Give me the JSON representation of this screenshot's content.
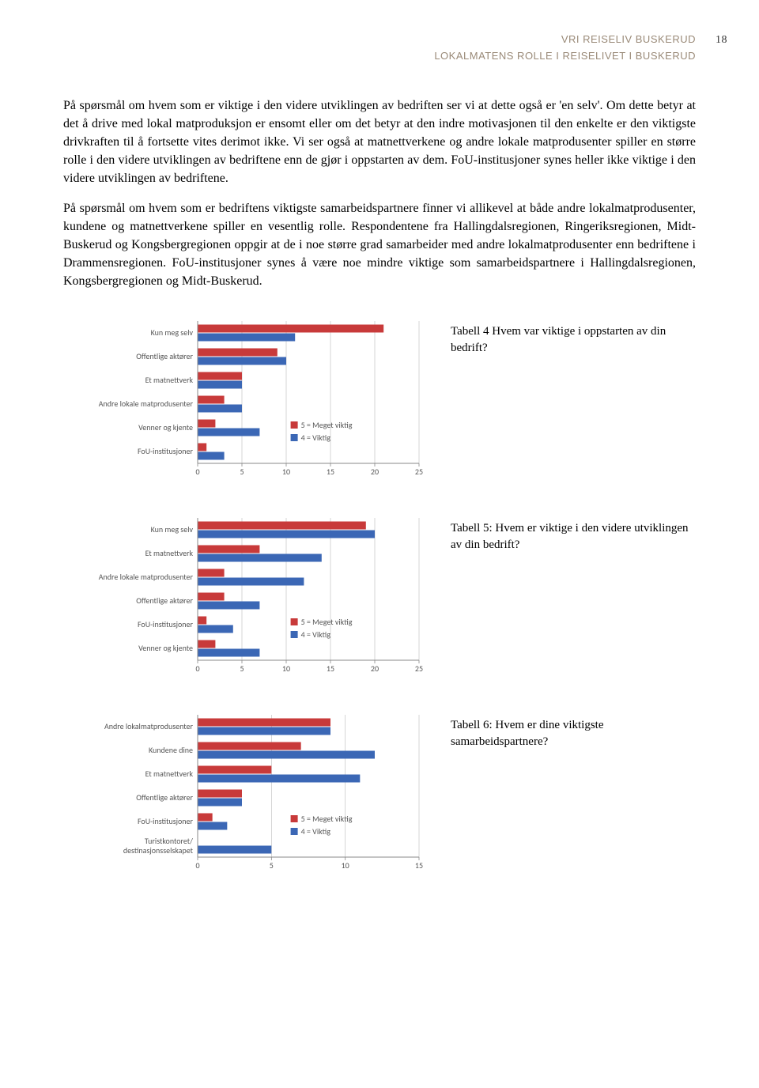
{
  "header": {
    "line1": "VRI REISELIV BUSKERUD",
    "line2": "LOKALMATENS ROLLE I REISELIVET I BUSKERUD",
    "page_number": "18"
  },
  "paragraphs": {
    "p1": "På spørsmål om hvem som er viktige i den videre utviklingen av bedriften ser vi at dette også er 'en selv'. Om dette betyr at det å drive med lokal matproduksjon er ensomt eller om det betyr at den indre motivasjonen til den enkelte er den viktigste drivkraften til å fortsette vites derimot ikke. Vi ser også at matnettverkene og andre lokale matprodusenter spiller en større rolle i den videre utviklingen av bedriftene enn de gjør i oppstarten av dem. FoU-institusjoner synes heller ikke viktige i den videre utviklingen av bedriftene.",
    "p2": "På spørsmål om hvem som er bedriftens viktigste samarbeidspartnere finner vi allikevel at både andre lokalmatprodusenter, kundene og matnettverkene spiller en vesentlig rolle. Respondentene fra Hallingdalsregionen, Ringeriksregionen, Midt-Buskerud og Kongsbergregionen oppgir at de i noe større grad samarbeider med andre lokalmatprodusenter enn bedriftene i Drammensregionen. FoU-institusjoner synes å være noe mindre viktige som samarbeidspartnere i Hallingdalsregionen, Kongsbergregionen og Midt-Buskerud."
  },
  "legend": {
    "s5": "5 = Meget viktig",
    "s4": "4 = Viktig"
  },
  "colors": {
    "red": "#c83a3a",
    "blue": "#3b67b5",
    "axis": "#888888",
    "grid": "#bbbbbb",
    "label": "#555555",
    "header": "#9a8a78"
  },
  "chart1": {
    "caption": "Tabell 4 Hvem var viktige i oppstarten av din bedrift?",
    "xmax": 25,
    "xticks": [
      0,
      5,
      10,
      15,
      20,
      25
    ],
    "label_fontsize": 10,
    "tick_fontsize": 10,
    "categories": [
      {
        "label": "Kun meg selv",
        "red": 21,
        "blue": 11
      },
      {
        "label": "Offentlige aktører",
        "red": 9,
        "blue": 10
      },
      {
        "label": "Et matnettverk",
        "red": 5,
        "blue": 5
      },
      {
        "label": "Andre lokale matprodusenter",
        "red": 3,
        "blue": 5
      },
      {
        "label": "Venner og kjente",
        "red": 2,
        "blue": 7
      },
      {
        "label": "FoU-institusjoner",
        "red": 1,
        "blue": 3
      }
    ]
  },
  "chart2": {
    "caption": "Tabell 5: Hvem er viktige i den videre utviklingen av din bedrift?",
    "xmax": 25,
    "xticks": [
      0,
      5,
      10,
      15,
      20,
      25
    ],
    "label_fontsize": 10,
    "tick_fontsize": 10,
    "categories": [
      {
        "label": "Kun meg selv",
        "red": 19,
        "blue": 20
      },
      {
        "label": "Et matnettverk",
        "red": 7,
        "blue": 14
      },
      {
        "label": "Andre lokale matprodusenter",
        "red": 3,
        "blue": 12
      },
      {
        "label": "Offentlige aktører",
        "red": 3,
        "blue": 7
      },
      {
        "label": "FoU-institusjoner",
        "red": 1,
        "blue": 4
      },
      {
        "label": "Venner og kjente",
        "red": 2,
        "blue": 7
      }
    ]
  },
  "chart3": {
    "caption": "Tabell 6: Hvem er dine viktigste samarbeidspartnere?",
    "xmax": 15,
    "xticks": [
      0,
      5,
      10,
      15
    ],
    "label_fontsize": 10,
    "tick_fontsize": 10,
    "categories": [
      {
        "label": "Andre lokalmatprodusenter",
        "red": 9,
        "blue": 9
      },
      {
        "label": "Kundene dine",
        "red": 7,
        "blue": 12
      },
      {
        "label": "Et matnettverk",
        "red": 5,
        "blue": 11
      },
      {
        "label": "Offentlige aktører",
        "red": 3,
        "blue": 3
      },
      {
        "label": "FoU-institusjoner",
        "red": 1,
        "blue": 2
      },
      {
        "label": "Turistkontoret/destinasjonsselskapet",
        "red": 0,
        "blue": 5
      }
    ]
  }
}
